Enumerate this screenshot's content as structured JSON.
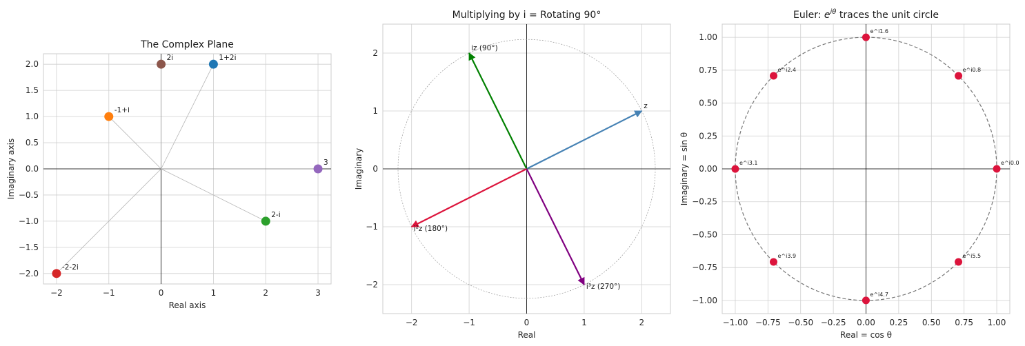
{
  "chart_data": [
    {
      "type": "scatter",
      "title": "The Complex Plane",
      "xlabel": "Real axis",
      "ylabel": "Imaginary axis",
      "xlim": [
        -2.25,
        3.25
      ],
      "ylim": [
        -2.2,
        2.2
      ],
      "xticks": [
        -2,
        -1,
        0,
        1,
        2,
        3
      ],
      "yticks": [
        -2.0,
        -1.5,
        -1.0,
        -0.5,
        0.0,
        0.5,
        1.0,
        1.5,
        2.0
      ],
      "ytick_labels": [
        "−2.0",
        "−1.5",
        "−1.0",
        "−0.5",
        "0.0",
        "0.5",
        "1.0",
        "1.5",
        "2.0"
      ],
      "xtick_labels": [
        "−2",
        "−1",
        "0",
        "1",
        "2",
        "3"
      ],
      "grid": true,
      "points": [
        {
          "label": "1+2i",
          "x": 1,
          "y": 2,
          "color": "#1f77b4"
        },
        {
          "label": "-1+i",
          "x": -1,
          "y": 1,
          "color": "#ff7f0e"
        },
        {
          "label": "2-i",
          "x": 2,
          "y": -1,
          "color": "#2ca02c"
        },
        {
          "label": "-2-2i",
          "x": -2,
          "y": -2,
          "color": "#d62728"
        },
        {
          "label": "3",
          "x": 3,
          "y": 0,
          "color": "#9467bd"
        },
        {
          "label": "2i",
          "x": 0,
          "y": 2,
          "color": "#8c564b"
        }
      ]
    },
    {
      "type": "vector",
      "title": "Multiplying by i = Rotating 90°",
      "xlabel": "Real",
      "ylabel": "Imaginary",
      "xlim": [
        -2.5,
        2.5
      ],
      "ylim": [
        -2.5,
        2.5
      ],
      "xticks": [
        -2,
        -1,
        0,
        1,
        2
      ],
      "yticks": [
        -2,
        -1,
        0,
        1,
        2
      ],
      "xtick_labels": [
        "−2",
        "−1",
        "0",
        "1",
        "2"
      ],
      "ytick_labels": [
        "−2",
        "−1",
        "0",
        "1",
        "2"
      ],
      "grid": true,
      "circle_radius": 2.236,
      "vectors": [
        {
          "label": "z",
          "x": 2,
          "y": 1,
          "color": "#4682b4"
        },
        {
          "label": "iz (90°)",
          "x": -1,
          "y": 2,
          "color": "#008000"
        },
        {
          "label": "i²z (180°)",
          "x": -2,
          "y": -1,
          "color": "#dc143c"
        },
        {
          "label": "i³z (270°)",
          "x": 1,
          "y": -2,
          "color": "#800080"
        }
      ]
    },
    {
      "type": "scatter",
      "title_prefix": "Euler: ",
      "title_base": "e",
      "title_sup": "iθ",
      "title_suffix": " traces the unit circle",
      "xlabel": "Real = cos θ",
      "ylabel": "Imaginary = sin θ",
      "xlim": [
        -1.1,
        1.1
      ],
      "ylim": [
        -1.1,
        1.1
      ],
      "xticks": [
        -1.0,
        -0.75,
        -0.5,
        -0.25,
        0.0,
        0.25,
        0.5,
        0.75,
        1.0
      ],
      "xtick_labels": [
        "−1.00",
        "−0.75",
        "−0.50",
        "−0.25",
        "0.00",
        "0.25",
        "0.50",
        "0.75",
        "1.00"
      ],
      "yticks": [
        -1.0,
        -0.75,
        -0.5,
        -0.25,
        0.0,
        0.25,
        0.5,
        0.75,
        1.0
      ],
      "ytick_labels": [
        "−1.00",
        "−0.75",
        "−0.50",
        "−0.25",
        "0.00",
        "0.25",
        "0.50",
        "0.75",
        "1.00"
      ],
      "grid": true,
      "circle_radius": 1,
      "color": "#dc143c",
      "points": [
        {
          "label": "e^i0.0",
          "theta": 0.0
        },
        {
          "label": "e^i0.8",
          "theta": 0.785
        },
        {
          "label": "e^i1.6",
          "theta": 1.571
        },
        {
          "label": "e^i2.4",
          "theta": 2.356
        },
        {
          "label": "e^i3.1",
          "theta": 3.142
        },
        {
          "label": "e^i3.9",
          "theta": 3.927
        },
        {
          "label": "e^i4.7",
          "theta": 4.712
        },
        {
          "label": "e^i5.5",
          "theta": 5.498
        }
      ]
    }
  ]
}
